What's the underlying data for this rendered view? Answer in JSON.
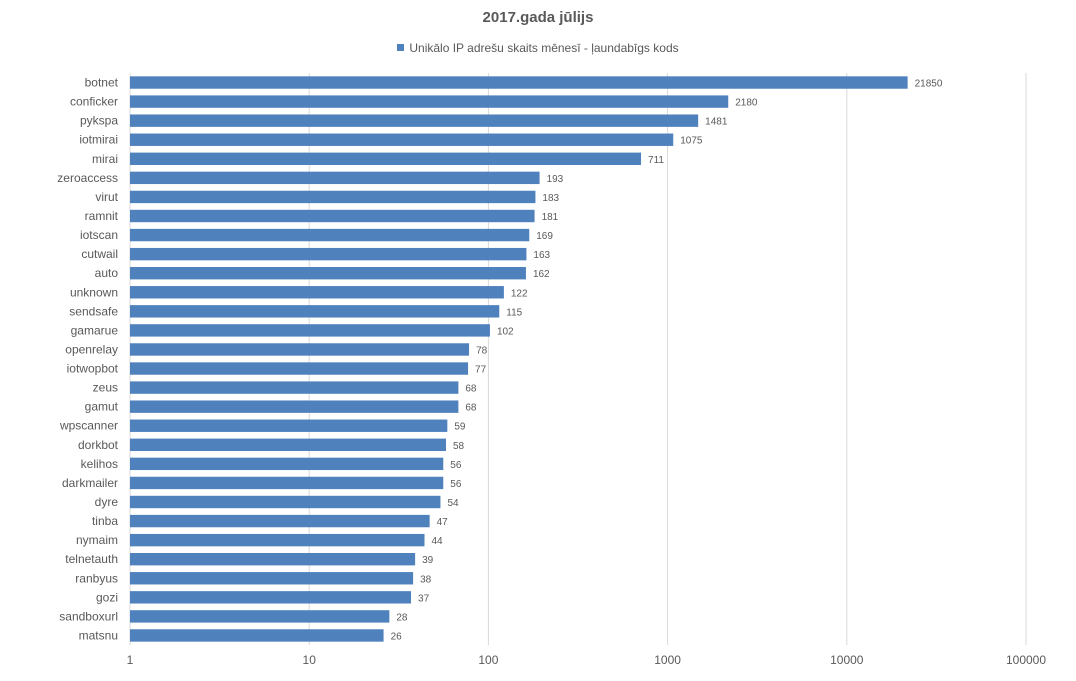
{
  "chart_data": {
    "type": "bar",
    "orientation": "horizontal",
    "title": "2017.gada jūlijs",
    "xscale": "log",
    "xlim": [
      1,
      100000
    ],
    "xticks": [
      "1",
      "10",
      "100",
      "1000",
      "10000",
      "100000"
    ],
    "grid": true,
    "legend_position": "top",
    "color": "#4f81bd",
    "categories": [
      "botnet",
      "conficker",
      "pykspa",
      "iotmirai",
      "mirai",
      "zeroaccess",
      "virut",
      "ramnit",
      "iotscan",
      "cutwail",
      "auto",
      "unknown",
      "sendsafe",
      "gamarue",
      "openrelay",
      "iotwopbot",
      "zeus",
      "gamut",
      "wpscanner",
      "dorkbot",
      "kelihos",
      "darkmailer",
      "dyre",
      "tinba",
      "nymaim",
      "telnetauth",
      "ranbyus",
      "gozi",
      "sandboxurl",
      "matsnu"
    ],
    "series": [
      {
        "name": "Unikālo IP adrešu skaits mēnesī  -  ļaundabīgs kods",
        "values": [
          21850,
          2180,
          1481,
          1075,
          711,
          193,
          183,
          181,
          169,
          163,
          162,
          122,
          115,
          102,
          78,
          77,
          68,
          68,
          59,
          58,
          56,
          56,
          54,
          47,
          44,
          39,
          38,
          37,
          28,
          26
        ]
      }
    ]
  }
}
